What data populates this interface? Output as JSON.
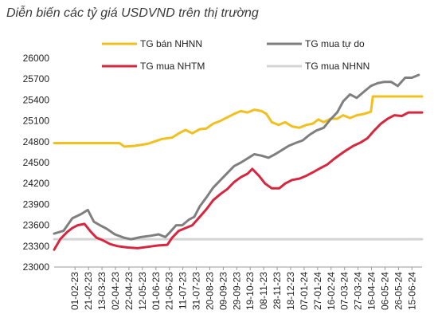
{
  "chart_title": "Diễn biến các tỷ giá USDVND trên thị trường",
  "chart_data": {
    "type": "line",
    "title": "Diễn biến các tỷ giá USDVND trên thị trường",
    "xlabel": "",
    "ylabel": "",
    "ylim": [
      23000,
      26000
    ],
    "yticks": [
      26000,
      25700,
      25400,
      25100,
      24800,
      24500,
      24200,
      23900,
      23600,
      23300,
      23000
    ],
    "xlim": [
      "2023-01-01",
      "2024-06-30"
    ],
    "xticks": [
      "01-02-23",
      "21-02-23",
      "13-03-23",
      "02-04-23",
      "22-04-23",
      "12-05-23",
      "01-06-23",
      "21-06-23",
      "11-07-23",
      "31-07-23",
      "20-08-23",
      "09-09-23",
      "29-09-23",
      "19-10-23",
      "08-11-23",
      "28-11-23",
      "18-12-23",
      "07-01-24",
      "27-01-24",
      "16-02-24",
      "07-03-24",
      "27-03-24",
      "16-04-24",
      "06-05-24",
      "26-05-24",
      "15-06-24"
    ],
    "legend_position": "top",
    "grid": false,
    "series": [
      {
        "name": "TG bán NHNN",
        "color": "#f2c01e",
        "points": [
          [
            "2023-01-01",
            24780
          ],
          [
            "2023-04-08",
            24780
          ],
          [
            "2023-04-15",
            24730
          ],
          [
            "2023-05-01",
            24740
          ],
          [
            "2023-05-20",
            24770
          ],
          [
            "2023-06-10",
            24840
          ],
          [
            "2023-06-25",
            24860
          ],
          [
            "2023-07-05",
            24920
          ],
          [
            "2023-07-15",
            24970
          ],
          [
            "2023-07-25",
            24920
          ],
          [
            "2023-08-05",
            24980
          ],
          [
            "2023-08-15",
            24990
          ],
          [
            "2023-08-25",
            25060
          ],
          [
            "2023-09-05",
            25100
          ],
          [
            "2023-09-15",
            25150
          ],
          [
            "2023-09-25",
            25200
          ],
          [
            "2023-10-05",
            25240
          ],
          [
            "2023-10-15",
            25220
          ],
          [
            "2023-10-25",
            25260
          ],
          [
            "2023-11-05",
            25240
          ],
          [
            "2023-11-12",
            25200
          ],
          [
            "2023-11-20",
            25080
          ],
          [
            "2023-11-30",
            25040
          ],
          [
            "2023-12-10",
            25080
          ],
          [
            "2023-12-20",
            25020
          ],
          [
            "2023-12-31",
            25000
          ],
          [
            "2024-01-10",
            25040
          ],
          [
            "2024-01-20",
            25060
          ],
          [
            "2024-01-28",
            25120
          ],
          [
            "2024-02-05",
            25080
          ],
          [
            "2024-02-15",
            25130
          ],
          [
            "2024-02-25",
            25130
          ],
          [
            "2024-03-05",
            25180
          ],
          [
            "2024-03-15",
            25140
          ],
          [
            "2024-03-25",
            25180
          ],
          [
            "2024-04-05",
            25200
          ],
          [
            "2024-04-15",
            25230
          ],
          [
            "2024-04-18",
            25450
          ],
          [
            "2024-06-30",
            25450
          ]
        ]
      },
      {
        "name": "TG mua tự do",
        "color": "#7f7f7f",
        "points": [
          [
            "2023-01-01",
            23480
          ],
          [
            "2023-01-15",
            23520
          ],
          [
            "2023-01-28",
            23700
          ],
          [
            "2023-02-10",
            23760
          ],
          [
            "2023-02-20",
            23820
          ],
          [
            "2023-03-01",
            23650
          ],
          [
            "2023-03-10",
            23600
          ],
          [
            "2023-03-20",
            23550
          ],
          [
            "2023-04-01",
            23470
          ],
          [
            "2023-04-15",
            23420
          ],
          [
            "2023-04-25",
            23400
          ],
          [
            "2023-05-10",
            23430
          ],
          [
            "2023-05-25",
            23450
          ],
          [
            "2023-06-05",
            23470
          ],
          [
            "2023-06-15",
            23430
          ],
          [
            "2023-06-22",
            23500
          ],
          [
            "2023-07-01",
            23600
          ],
          [
            "2023-07-10",
            23600
          ],
          [
            "2023-07-20",
            23680
          ],
          [
            "2023-07-28",
            23720
          ],
          [
            "2023-08-05",
            23870
          ],
          [
            "2023-08-15",
            24000
          ],
          [
            "2023-08-25",
            24140
          ],
          [
            "2023-09-05",
            24250
          ],
          [
            "2023-09-15",
            24350
          ],
          [
            "2023-09-25",
            24450
          ],
          [
            "2023-10-05",
            24500
          ],
          [
            "2023-10-15",
            24560
          ],
          [
            "2023-10-25",
            24620
          ],
          [
            "2023-11-05",
            24600
          ],
          [
            "2023-11-15",
            24570
          ],
          [
            "2023-11-25",
            24620
          ],
          [
            "2023-12-05",
            24680
          ],
          [
            "2023-12-15",
            24740
          ],
          [
            "2023-12-25",
            24780
          ],
          [
            "2024-01-05",
            24820
          ],
          [
            "2024-01-15",
            24900
          ],
          [
            "2024-01-25",
            24960
          ],
          [
            "2024-02-05",
            25000
          ],
          [
            "2024-02-15",
            25120
          ],
          [
            "2024-02-25",
            25220
          ],
          [
            "2024-03-05",
            25380
          ],
          [
            "2024-03-15",
            25480
          ],
          [
            "2024-03-25",
            25430
          ],
          [
            "2024-04-05",
            25520
          ],
          [
            "2024-04-15",
            25600
          ],
          [
            "2024-04-25",
            25640
          ],
          [
            "2024-05-05",
            25660
          ],
          [
            "2024-05-15",
            25660
          ],
          [
            "2024-05-25",
            25600
          ],
          [
            "2024-06-05",
            25720
          ],
          [
            "2024-06-15",
            25720
          ],
          [
            "2024-06-25",
            25760
          ]
        ]
      },
      {
        "name": "TG mua NHTM",
        "color": "#d7263d",
        "points": [
          [
            "2023-01-01",
            23250
          ],
          [
            "2023-01-10",
            23400
          ],
          [
            "2023-01-20",
            23500
          ],
          [
            "2023-01-28",
            23560
          ],
          [
            "2023-02-05",
            23600
          ],
          [
            "2023-02-15",
            23620
          ],
          [
            "2023-02-25",
            23500
          ],
          [
            "2023-03-05",
            23420
          ],
          [
            "2023-03-15",
            23380
          ],
          [
            "2023-03-25",
            23330
          ],
          [
            "2023-04-05",
            23300
          ],
          [
            "2023-04-20",
            23280
          ],
          [
            "2023-05-05",
            23270
          ],
          [
            "2023-05-20",
            23290
          ],
          [
            "2023-06-05",
            23310
          ],
          [
            "2023-06-18",
            23320
          ],
          [
            "2023-06-25",
            23420
          ],
          [
            "2023-07-05",
            23520
          ],
          [
            "2023-07-15",
            23560
          ],
          [
            "2023-07-25",
            23600
          ],
          [
            "2023-08-05",
            23720
          ],
          [
            "2023-08-15",
            23830
          ],
          [
            "2023-08-25",
            23960
          ],
          [
            "2023-09-05",
            24050
          ],
          [
            "2023-09-15",
            24120
          ],
          [
            "2023-09-25",
            24220
          ],
          [
            "2023-10-05",
            24290
          ],
          [
            "2023-10-15",
            24340
          ],
          [
            "2023-10-22",
            24410
          ],
          [
            "2023-11-01",
            24310
          ],
          [
            "2023-11-10",
            24200
          ],
          [
            "2023-11-20",
            24130
          ],
          [
            "2023-12-01",
            24130
          ],
          [
            "2023-12-10",
            24200
          ],
          [
            "2023-12-20",
            24250
          ],
          [
            "2023-12-31",
            24270
          ],
          [
            "2024-01-10",
            24310
          ],
          [
            "2024-01-20",
            24360
          ],
          [
            "2024-01-31",
            24420
          ],
          [
            "2024-02-10",
            24470
          ],
          [
            "2024-02-20",
            24550
          ],
          [
            "2024-03-01",
            24620
          ],
          [
            "2024-03-10",
            24680
          ],
          [
            "2024-03-20",
            24740
          ],
          [
            "2024-03-31",
            24790
          ],
          [
            "2024-04-10",
            24850
          ],
          [
            "2024-04-20",
            24960
          ],
          [
            "2024-04-30",
            25060
          ],
          [
            "2024-05-10",
            25130
          ],
          [
            "2024-05-20",
            25180
          ],
          [
            "2024-05-31",
            25170
          ],
          [
            "2024-06-10",
            25220
          ],
          [
            "2024-06-20",
            25220
          ],
          [
            "2024-06-30",
            25220
          ]
        ]
      },
      {
        "name": "TG mua NHNN",
        "color": "#d4d4d4",
        "points": [
          [
            "2023-01-01",
            23400
          ],
          [
            "2024-06-30",
            23400
          ]
        ]
      }
    ]
  }
}
